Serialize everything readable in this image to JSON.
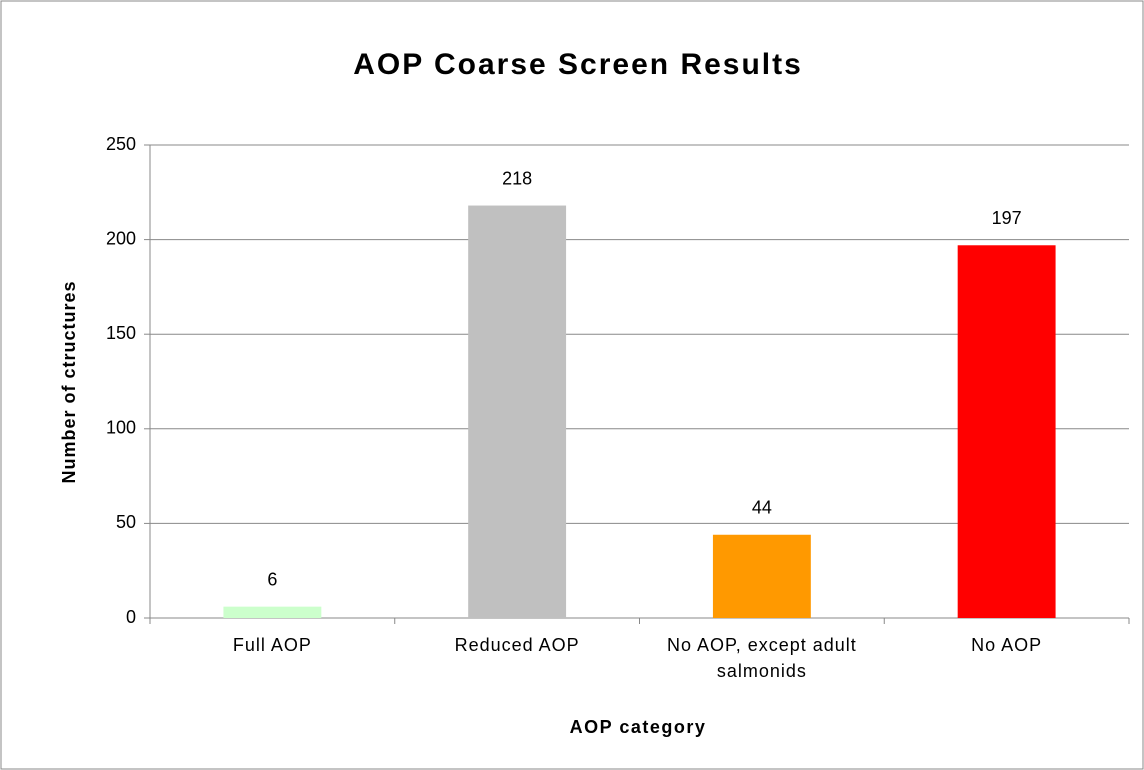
{
  "chart_data": {
    "type": "bar",
    "title": "AOP Coarse Screen Results",
    "x_label": "AOP category",
    "y_label": "Number of ctructures",
    "categories": [
      "Full AOP",
      "Reduced AOP",
      "No AOP, except adult salmonids",
      "No AOP"
    ],
    "values": [
      6,
      218,
      44,
      197
    ],
    "colors": [
      "#ccffcc",
      "#c0c0c0",
      "#ff9900",
      "#ff0000"
    ],
    "ylim": [
      0,
      250
    ],
    "yticks": [
      0,
      50,
      100,
      150,
      200,
      250
    ],
    "grid": true
  }
}
